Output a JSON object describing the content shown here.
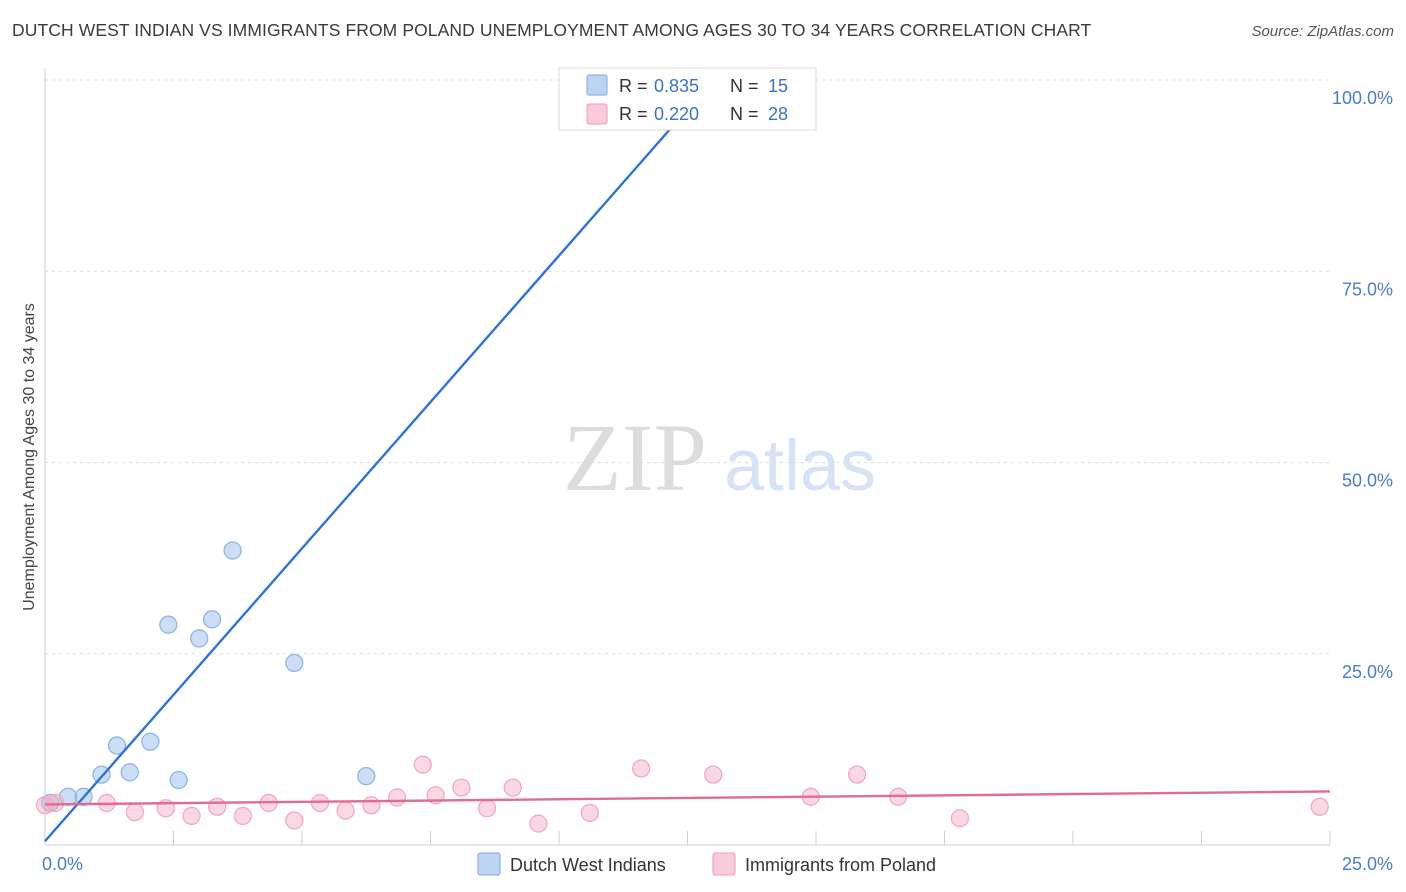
{
  "title": "DUTCH WEST INDIAN VS IMMIGRANTS FROM POLAND UNEMPLOYMENT AMONG AGES 30 TO 34 YEARS CORRELATION CHART",
  "source": "Source: ZipAtlas.com",
  "watermark": {
    "zip": "ZIP",
    "atlas": "atlas"
  },
  "chart_data": {
    "type": "scatter",
    "ylabel": "Unemployment Among Ages 30 to 34 years",
    "xlim": [
      0,
      25
    ],
    "ylim": [
      0,
      100
    ],
    "x_ticks": [
      {
        "value": 0,
        "label": "0.0%"
      },
      {
        "value": 25,
        "label": "25.0%"
      }
    ],
    "y_ticks": [
      {
        "value": 25,
        "label": "25.0%"
      },
      {
        "value": 50,
        "label": "50.0%"
      },
      {
        "value": 75,
        "label": "75.0%"
      },
      {
        "value": 100,
        "label": "100.0%"
      }
    ],
    "legend_position": "top-center",
    "series": [
      {
        "name": "Dutch West Indians",
        "color": "#8fb5e8",
        "line_color": "#2f74d0",
        "R": "0.835",
        "N": "15",
        "trend": {
          "x": [
            0,
            13.0
          ],
          "y": [
            0.5,
            100.0
          ]
        },
        "points": [
          {
            "x": 0.1,
            "y": 5.5
          },
          {
            "x": 0.45,
            "y": 6.3
          },
          {
            "x": 0.75,
            "y": 6.3
          },
          {
            "x": 1.1,
            "y": 9.2
          },
          {
            "x": 1.4,
            "y": 13.0
          },
          {
            "x": 1.65,
            "y": 9.5
          },
          {
            "x": 2.05,
            "y": 13.5
          },
          {
            "x": 2.4,
            "y": 28.8
          },
          {
            "x": 2.6,
            "y": 8.5
          },
          {
            "x": 3.0,
            "y": 27.0
          },
          {
            "x": 3.25,
            "y": 29.5
          },
          {
            "x": 3.65,
            "y": 38.5
          },
          {
            "x": 4.85,
            "y": 23.8
          },
          {
            "x": 6.25,
            "y": 9.0
          },
          {
            "x": 10.65,
            "y": 100.0
          }
        ]
      },
      {
        "name": "Immigrants from Poland",
        "color": "#f4a9c0",
        "line_color": "#e06b95",
        "R": "0.220",
        "N": "28",
        "trend": {
          "x": [
            0,
            25
          ],
          "y": [
            5.3,
            7.0
          ]
        },
        "points": [
          {
            "x": 0.2,
            "y": 5.5
          },
          {
            "x": 1.2,
            "y": 5.5
          },
          {
            "x": 1.75,
            "y": 4.3
          },
          {
            "x": 2.35,
            "y": 4.8
          },
          {
            "x": 2.85,
            "y": 3.8
          },
          {
            "x": 3.35,
            "y": 5.0
          },
          {
            "x": 3.85,
            "y": 3.8
          },
          {
            "x": 4.35,
            "y": 5.5
          },
          {
            "x": 4.85,
            "y": 3.2
          },
          {
            "x": 5.35,
            "y": 5.5
          },
          {
            "x": 5.85,
            "y": 4.5
          },
          {
            "x": 6.35,
            "y": 5.2
          },
          {
            "x": 6.85,
            "y": 6.2
          },
          {
            "x": 7.35,
            "y": 10.5
          },
          {
            "x": 7.6,
            "y": 6.5
          },
          {
            "x": 8.1,
            "y": 7.5
          },
          {
            "x": 8.6,
            "y": 4.8
          },
          {
            "x": 9.1,
            "y": 7.5
          },
          {
            "x": 9.6,
            "y": 2.8
          },
          {
            "x": 10.6,
            "y": 4.2
          },
          {
            "x": 11.6,
            "y": 10.0
          },
          {
            "x": 13.0,
            "y": 9.2
          },
          {
            "x": 14.9,
            "y": 6.3
          },
          {
            "x": 15.8,
            "y": 9.2
          },
          {
            "x": 16.6,
            "y": 6.3
          },
          {
            "x": 17.8,
            "y": 3.5
          },
          {
            "x": 24.8,
            "y": 5.0
          },
          {
            "x": 0.0,
            "y": 5.2
          }
        ]
      }
    ]
  }
}
